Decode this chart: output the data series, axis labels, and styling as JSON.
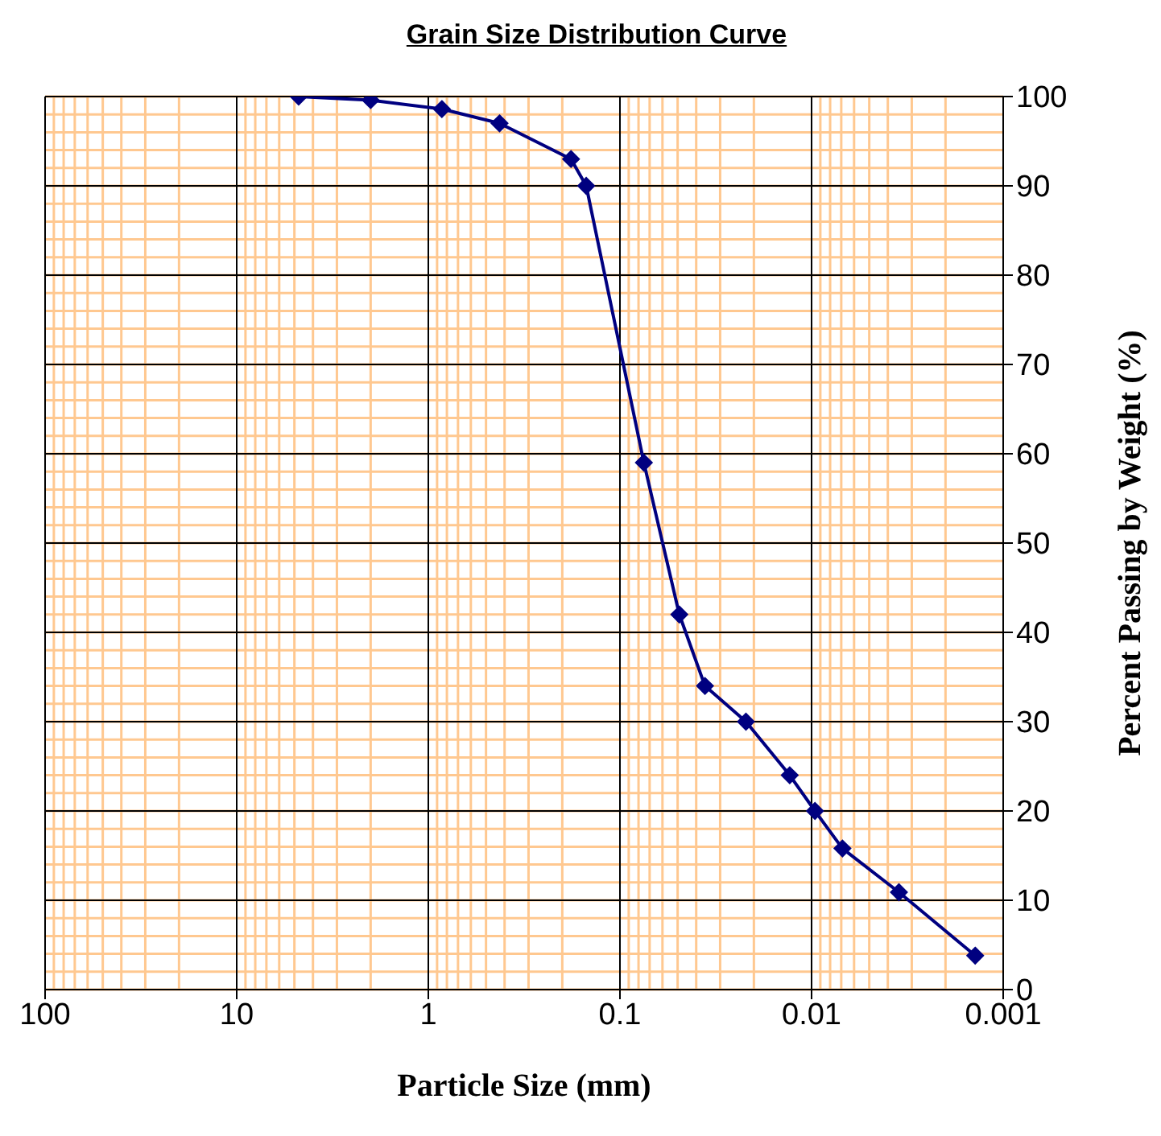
{
  "chart_data": {
    "type": "line",
    "title": "Grain Size Distribution Curve",
    "xlabel": "Particle Size (mm)",
    "ylabel": "Percent Passing by Weight (%)",
    "x": [
      4.75,
      2.0,
      0.85,
      0.425,
      0.18,
      0.15,
      0.075,
      0.049,
      0.036,
      0.022,
      0.013,
      0.0096,
      0.0069,
      0.0035,
      0.0014
    ],
    "series": [
      {
        "color": "#000080",
        "values": [
          100,
          99.6,
          98.6,
          97,
          93,
          90,
          59,
          42,
          34,
          30,
          24,
          20,
          15.8,
          10.9,
          3.8
        ]
      }
    ],
    "log": "x",
    "xlim": [
      100,
      0.001
    ],
    "xticks": [
      100,
      10,
      1,
      0.1,
      0.01,
      0.001
    ],
    "ylim": [
      0,
      100
    ],
    "yticks": [
      0,
      10,
      20,
      30,
      40,
      50,
      60,
      70,
      80,
      90,
      100
    ],
    "grid": true,
    "marker": "diamond",
    "line_style": "solid"
  }
}
